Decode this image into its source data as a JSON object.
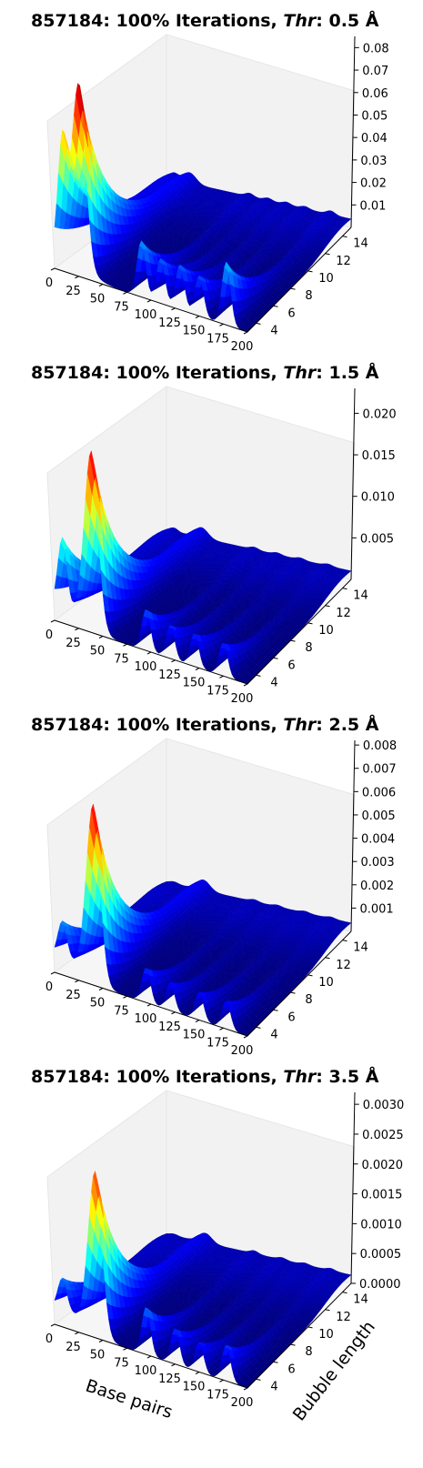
{
  "figure": {
    "panels": [
      {
        "title_prefix": "857184: 100% Iterations, ",
        "title_italic": "Thr",
        "title_suffix": ": 0.5 Å"
      },
      {
        "title_prefix": "857184: 100% Iterations, ",
        "title_italic": "Thr",
        "title_suffix": ": 1.5 Å"
      },
      {
        "title_prefix": "857184: 100% Iterations, ",
        "title_italic": "Thr",
        "title_suffix": ": 2.5 Å"
      },
      {
        "title_prefix": "857184: 100% Iterations, ",
        "title_italic": "Thr",
        "title_suffix": ": 3.5 Å"
      }
    ],
    "xlabel": "Base pairs",
    "ylabel": "Bubble length",
    "colormap": [
      "#00007f",
      "#0000ff",
      "#007fff",
      "#00ffff",
      "#7fff7f",
      "#ffff00",
      "#ff7f00",
      "#ff0000",
      "#7f0000"
    ]
  },
  "chart_data": [
    {
      "type": "surface3d",
      "title": "857184: 100% Iterations, Thr: 0.5 Å",
      "xlim": [
        0,
        200
      ],
      "ylim": [
        3,
        15
      ],
      "zlim": [
        0,
        0.085
      ],
      "x_ticks": [
        "0",
        "25",
        "50",
        "75",
        "100",
        "125",
        "150",
        "175",
        "200"
      ],
      "y_ticks": [
        "4",
        "6",
        "8",
        "10",
        "12",
        "14"
      ],
      "z_ticks": [
        "0.01",
        "0.02",
        "0.03",
        "0.04",
        "0.05",
        "0.06",
        "0.07",
        "0.08"
      ],
      "z_tick_values": [
        0.01,
        0.02,
        0.03,
        0.04,
        0.05,
        0.06,
        0.07,
        0.08
      ],
      "peaks": [
        {
          "base_pair": 8,
          "value": 0.05
        },
        {
          "base_pair": 25,
          "value": 0.08
        },
        {
          "base_pair": 90,
          "value": 0.025
        },
        {
          "base_pair": 110,
          "value": 0.02
        },
        {
          "base_pair": 130,
          "value": 0.02
        },
        {
          "base_pair": 150,
          "value": 0.018
        },
        {
          "base_pair": 178,
          "value": 0.028
        }
      ],
      "xlabel": "",
      "ylabel": ""
    },
    {
      "type": "surface3d",
      "title": "857184: 100% Iterations, Thr: 1.5 Å",
      "xlim": [
        0,
        200
      ],
      "ylim": [
        3,
        15
      ],
      "zlim": [
        0,
        0.023
      ],
      "x_ticks": [
        "0",
        "25",
        "50",
        "75",
        "100",
        "125",
        "150",
        "175",
        "200"
      ],
      "y_ticks": [
        "4",
        "6",
        "8",
        "10",
        "12",
        "14"
      ],
      "z_ticks": [
        "0.005",
        "0.010",
        "0.015",
        "0.020"
      ],
      "z_tick_values": [
        0.005,
        0.01,
        0.015,
        0.02
      ],
      "peaks": [
        {
          "base_pair": 8,
          "value": 0.008
        },
        {
          "base_pair": 38,
          "value": 0.021
        },
        {
          "base_pair": 95,
          "value": 0.005
        },
        {
          "base_pair": 120,
          "value": 0.004
        },
        {
          "base_pair": 145,
          "value": 0.004
        },
        {
          "base_pair": 175,
          "value": 0.004
        }
      ],
      "xlabel": "",
      "ylabel": ""
    },
    {
      "type": "surface3d",
      "title": "857184: 100% Iterations, Thr: 2.5 Å",
      "xlim": [
        0,
        200
      ],
      "ylim": [
        3,
        15
      ],
      "zlim": [
        0,
        0.0082
      ],
      "x_ticks": [
        "0",
        "25",
        "50",
        "75",
        "100",
        "125",
        "150",
        "175",
        "200"
      ],
      "y_ticks": [
        "4",
        "6",
        "8",
        "10",
        "12",
        "14"
      ],
      "z_ticks": [
        "0.001",
        "0.002",
        "0.003",
        "0.004",
        "0.005",
        "0.006",
        "0.007",
        "0.008"
      ],
      "z_tick_values": [
        0.001,
        0.002,
        0.003,
        0.004,
        0.005,
        0.006,
        0.007,
        0.008
      ],
      "peaks": [
        {
          "base_pair": 8,
          "value": 0.0015
        },
        {
          "base_pair": 40,
          "value": 0.0075
        },
        {
          "base_pair": 95,
          "value": 0.0015
        },
        {
          "base_pair": 120,
          "value": 0.0012
        },
        {
          "base_pair": 150,
          "value": 0.0012
        },
        {
          "base_pair": 178,
          "value": 0.0012
        }
      ],
      "xlabel": "",
      "ylabel": ""
    },
    {
      "type": "surface3d",
      "title": "857184: 100% Iterations, Thr: 3.5 Å",
      "xlim": [
        0,
        200
      ],
      "ylim": [
        3,
        15
      ],
      "zlim": [
        0,
        0.0032
      ],
      "x_ticks": [
        "0",
        "25",
        "50",
        "75",
        "100",
        "125",
        "150",
        "175",
        "200"
      ],
      "y_ticks": [
        "4",
        "6",
        "8",
        "10",
        "12",
        "14"
      ],
      "z_ticks": [
        "0.0000",
        "0.0005",
        "0.0010",
        "0.0015",
        "0.0020",
        "0.0025",
        "0.0030"
      ],
      "z_tick_values": [
        0.0,
        0.0005,
        0.001,
        0.0015,
        0.002,
        0.0025,
        0.003
      ],
      "peaks": [
        {
          "base_pair": 8,
          "value": 0.0005
        },
        {
          "base_pair": 42,
          "value": 0.0027
        },
        {
          "base_pair": 95,
          "value": 0.0008
        },
        {
          "base_pair": 125,
          "value": 0.0006
        },
        {
          "base_pair": 150,
          "value": 0.0005
        },
        {
          "base_pair": 178,
          "value": 0.0006
        }
      ],
      "xlabel": "Base pairs",
      "ylabel": "Bubble length"
    }
  ]
}
